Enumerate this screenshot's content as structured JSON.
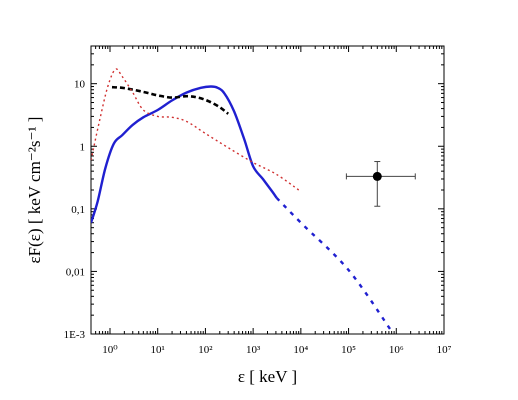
{
  "chart_data": {
    "type": "line",
    "title": "",
    "xlabel": "ε [ keV ]",
    "ylabel": "εF(ε) [ keV cm⁻²s⁻¹ ]",
    "x_scale": "log",
    "y_scale": "log",
    "xlim": [
      0.4,
      10000000
    ],
    "ylim": [
      0.001,
      40
    ],
    "x_ticks": [
      {
        "value": 1,
        "label": "10⁰"
      },
      {
        "value": 10,
        "label": "10¹"
      },
      {
        "value": 100,
        "label": "10²"
      },
      {
        "value": 1000,
        "label": "10³"
      },
      {
        "value": 10000,
        "label": "10⁴"
      },
      {
        "value": 100000,
        "label": "10⁵"
      },
      {
        "value": 1000000,
        "label": "10⁶"
      },
      {
        "value": 10000000,
        "label": "10⁷"
      }
    ],
    "y_ticks": [
      {
        "value": 0.001,
        "label": "1E-3"
      },
      {
        "value": 0.01,
        "label": "0,01"
      },
      {
        "value": 0.1,
        "label": "0,1"
      },
      {
        "value": 1,
        "label": "1"
      },
      {
        "value": 10,
        "label": "10"
      }
    ],
    "series": [
      {
        "color": "#2020d0",
        "style": "solid",
        "points": [
          [
            0.4,
            0.06
          ],
          [
            0.55,
            0.13
          ],
          [
            0.8,
            0.45
          ],
          [
            1.2,
            1.1
          ],
          [
            1.8,
            1.5
          ],
          [
            3,
            2.2
          ],
          [
            5,
            2.9
          ],
          [
            10,
            3.8
          ],
          [
            20,
            5.4
          ],
          [
            40,
            7.2
          ],
          [
            80,
            8.6
          ],
          [
            130,
            9.0
          ],
          [
            180,
            8.6
          ],
          [
            250,
            7.0
          ],
          [
            400,
            3.6
          ],
          [
            650,
            1.3
          ],
          [
            1000,
            0.48
          ],
          [
            1600,
            0.3
          ],
          [
            2500,
            0.19
          ],
          [
            3100,
            0.15
          ]
        ]
      },
      {
        "color": "#2020d0",
        "style": "dotted",
        "points": [
          [
            3100,
            0.15
          ],
          [
            10000,
            0.06
          ],
          [
            100000,
            0.0105
          ],
          [
            800000,
            0.0011
          ]
        ]
      },
      {
        "color": "#000000",
        "style": "dashed",
        "points": [
          [
            1.1,
            8.8
          ],
          [
            2,
            8.5
          ],
          [
            5,
            7.4
          ],
          [
            10,
            6.5
          ],
          [
            20,
            6.0
          ],
          [
            40,
            6.3
          ],
          [
            70,
            6.0
          ],
          [
            120,
            5.2
          ],
          [
            200,
            4.2
          ],
          [
            300,
            3.3
          ]
        ]
      },
      {
        "color": "#d03030",
        "style": "dotted",
        "points": [
          [
            0.4,
            0.6
          ],
          [
            0.6,
            2.5
          ],
          [
            0.9,
            9.0
          ],
          [
            1.3,
            17
          ],
          [
            1.8,
            13
          ],
          [
            3,
            7.2
          ],
          [
            5,
            3.8
          ],
          [
            10,
            3.0
          ],
          [
            20,
            2.9
          ],
          [
            40,
            2.5
          ],
          [
            100,
            1.6
          ],
          [
            300,
            0.95
          ],
          [
            1000,
            0.55
          ],
          [
            3000,
            0.36
          ],
          [
            9000,
            0.2
          ]
        ]
      }
    ],
    "error_point": {
      "x": 400000,
      "y": 0.33,
      "x_err": [
        90000,
        2500000
      ],
      "y_err": [
        0.11,
        0.57
      ],
      "color": "#000000"
    }
  }
}
